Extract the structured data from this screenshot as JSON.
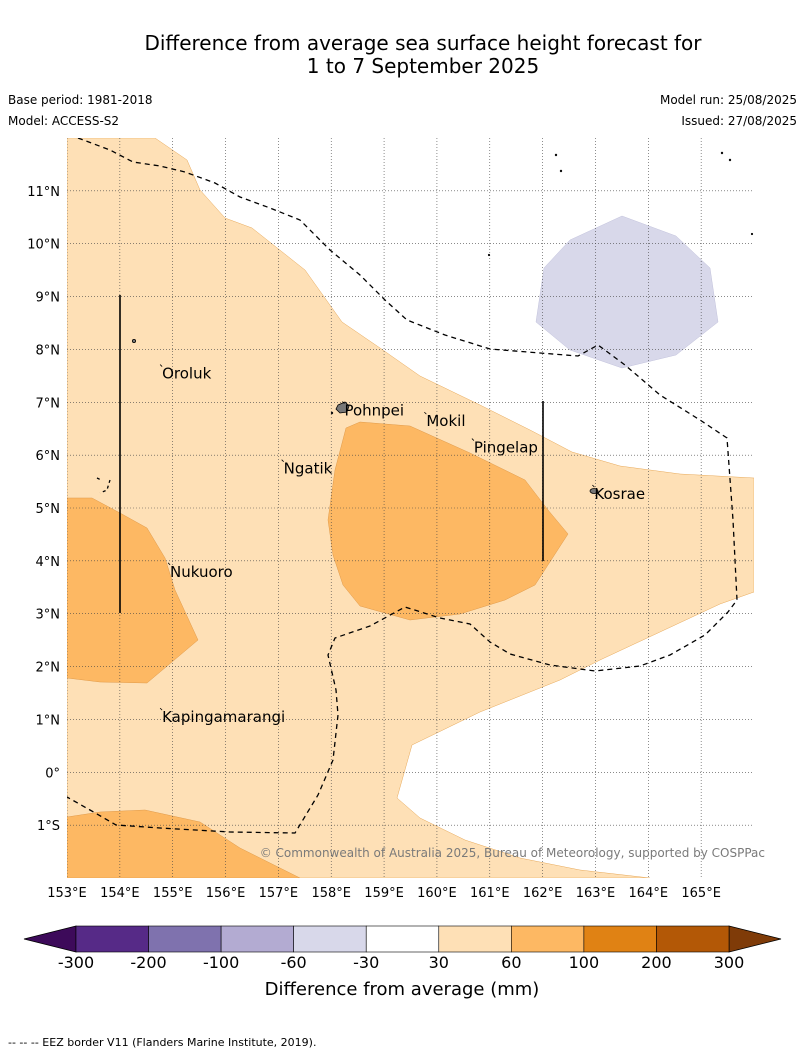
{
  "header": {
    "title_line1": "Difference from average sea surface height forecast for",
    "title_line2": "1 to 7 September 2025",
    "base_period": "Base period: 1981-2018",
    "model": "Model: ACCESS-S2",
    "model_run": "Model run: 25/08/2025",
    "issued": "Issued: 27/08/2025"
  },
  "map": {
    "lon_range": [
      153,
      166
    ],
    "lat_range": [
      -2,
      12
    ],
    "lon_ticks": [
      "153°E",
      "154°E",
      "155°E",
      "156°E",
      "157°E",
      "158°E",
      "159°E",
      "160°E",
      "161°E",
      "162°E",
      "163°E",
      "164°E",
      "165°E"
    ],
    "lat_ticks": [
      "11°N",
      "10°N",
      "9°N",
      "8°N",
      "7°N",
      "6°N",
      "5°N",
      "4°N",
      "3°N",
      "2°N",
      "1°N",
      "0°",
      "1°S"
    ],
    "credit": "© Commonwealth of Australia 2025, Bureau of Meteorology, supported by COSPPac",
    "places": [
      {
        "name": "Oroluk",
        "lon": 154.8,
        "lat": 7.6
      },
      {
        "name": "Pohnpei",
        "lon": 158.25,
        "lat": 6.9
      },
      {
        "name": "Mokil",
        "lon": 159.8,
        "lat": 6.7
      },
      {
        "name": "Pingelap",
        "lon": 160.7,
        "lat": 6.2
      },
      {
        "name": "Ngatik",
        "lon": 157.1,
        "lat": 5.8
      },
      {
        "name": "Kosrae",
        "lon": 162.98,
        "lat": 5.32
      },
      {
        "name": "Nukuoro",
        "lon": 154.95,
        "lat": 3.85
      },
      {
        "name": "Kapingamarangi",
        "lon": 154.8,
        "lat": 1.1
      }
    ],
    "grid": "on"
  },
  "colorbar": {
    "ticks": [
      "-300",
      "-200",
      "-100",
      "-60",
      "-30",
      "30",
      "60",
      "100",
      "200",
      "300"
    ],
    "colors": [
      "#562a87",
      "#7f72ae",
      "#b3abd2",
      "#d8d8ea",
      "#ffffff",
      "#fee0b6",
      "#fdb863",
      "#e08214",
      "#b35806"
    ],
    "under_color": "#3d0a5a",
    "over_color": "#7f3b08",
    "title": "Difference from average (mm)"
  },
  "footnote": "--  --  -- EEZ border V11 (Flanders Marine Institute, 2019)."
}
